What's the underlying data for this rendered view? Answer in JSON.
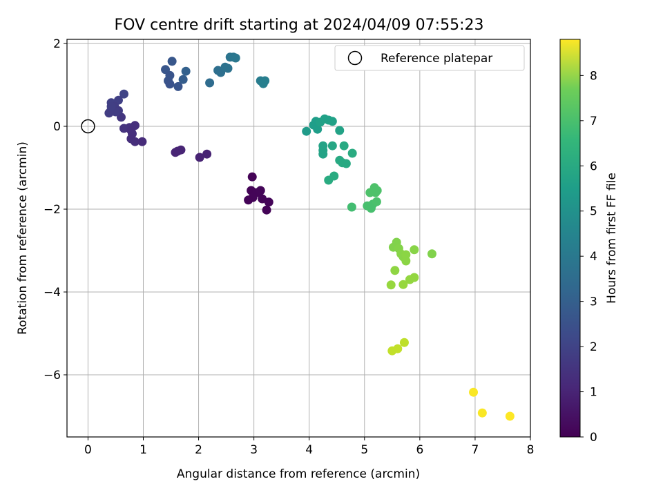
{
  "chart_data": {
    "type": "scatter",
    "title": "FOV centre drift starting at 2024/04/09 07:55:23",
    "xlabel": "Angular distance from reference (arcmin)",
    "ylabel": "Rotation from reference (arcmin)",
    "xlim": [
      -0.38,
      8.0
    ],
    "ylim": [
      -7.5,
      2.1
    ],
    "xticks": [
      0,
      1,
      2,
      3,
      4,
      5,
      6,
      7,
      8
    ],
    "yticks": [
      2,
      0,
      -2,
      -4,
      -6
    ],
    "grid": true,
    "colormap": "viridis",
    "colorbar": {
      "label": "Hours from first FF file",
      "range": [
        0,
        8.8
      ],
      "ticks": [
        0,
        1,
        2,
        3,
        4,
        5,
        6,
        7,
        8
      ]
    },
    "legend": {
      "placement": "top-right",
      "entries": [
        "Reference platepar"
      ]
    },
    "reference_point": {
      "x": 0,
      "y": 0,
      "label": "Reference platepar"
    },
    "points": [
      {
        "x": 2.97,
        "y": -1.22,
        "c": 0.05
      },
      {
        "x": 2.95,
        "y": -1.55,
        "c": 0.08
      },
      {
        "x": 3.05,
        "y": -1.6,
        "c": 0.1
      },
      {
        "x": 3.12,
        "y": -1.55,
        "c": 0.12
      },
      {
        "x": 2.98,
        "y": -1.72,
        "c": 0.1
      },
      {
        "x": 2.9,
        "y": -1.78,
        "c": 0.08
      },
      {
        "x": 3.15,
        "y": -1.75,
        "c": 0.12
      },
      {
        "x": 3.27,
        "y": -1.83,
        "c": 0.1
      },
      {
        "x": 3.23,
        "y": -2.02,
        "c": 0.08
      },
      {
        "x": 2.15,
        "y": -0.67,
        "c": 0.85
      },
      {
        "x": 2.02,
        "y": -0.75,
        "c": 0.85
      },
      {
        "x": 1.68,
        "y": -0.57,
        "c": 0.9
      },
      {
        "x": 1.62,
        "y": -0.6,
        "c": 0.9
      },
      {
        "x": 1.58,
        "y": -0.63,
        "c": 0.9
      },
      {
        "x": 0.85,
        "y": 0.02,
        "c": 1.2
      },
      {
        "x": 0.75,
        "y": -0.03,
        "c": 1.25
      },
      {
        "x": 0.65,
        "y": -0.05,
        "c": 1.3
      },
      {
        "x": 0.78,
        "y": -0.1,
        "c": 1.2
      },
      {
        "x": 0.8,
        "y": -0.18,
        "c": 1.2
      },
      {
        "x": 0.78,
        "y": -0.3,
        "c": 1.15
      },
      {
        "x": 0.85,
        "y": -0.37,
        "c": 1.15
      },
      {
        "x": 0.98,
        "y": -0.37,
        "c": 1.1
      },
      {
        "x": 0.6,
        "y": 0.22,
        "c": 1.4
      },
      {
        "x": 0.65,
        "y": 0.78,
        "c": 1.8
      },
      {
        "x": 0.55,
        "y": 0.63,
        "c": 1.7
      },
      {
        "x": 0.42,
        "y": 0.57,
        "c": 1.7
      },
      {
        "x": 0.48,
        "y": 0.48,
        "c": 1.6
      },
      {
        "x": 0.45,
        "y": 0.42,
        "c": 1.6
      },
      {
        "x": 0.55,
        "y": 0.38,
        "c": 1.55
      },
      {
        "x": 0.4,
        "y": 0.35,
        "c": 1.6
      },
      {
        "x": 0.5,
        "y": 0.35,
        "c": 1.6
      },
      {
        "x": 0.38,
        "y": 0.32,
        "c": 1.6
      },
      {
        "x": 0.42,
        "y": 0.48,
        "c": 1.65
      },
      {
        "x": 1.52,
        "y": 1.57,
        "c": 2.4
      },
      {
        "x": 1.4,
        "y": 1.37,
        "c": 2.35
      },
      {
        "x": 1.48,
        "y": 1.23,
        "c": 2.3
      },
      {
        "x": 1.45,
        "y": 1.1,
        "c": 2.3
      },
      {
        "x": 1.48,
        "y": 1.02,
        "c": 2.25
      },
      {
        "x": 1.63,
        "y": 0.96,
        "c": 2.3
      },
      {
        "x": 1.72,
        "y": 1.13,
        "c": 2.6
      },
      {
        "x": 1.77,
        "y": 1.33,
        "c": 2.7
      },
      {
        "x": 2.2,
        "y": 1.05,
        "c": 3.1
      },
      {
        "x": 2.35,
        "y": 1.35,
        "c": 3.2
      },
      {
        "x": 2.4,
        "y": 1.3,
        "c": 3.2
      },
      {
        "x": 2.48,
        "y": 1.43,
        "c": 3.3
      },
      {
        "x": 2.53,
        "y": 1.4,
        "c": 3.3
      },
      {
        "x": 2.57,
        "y": 1.67,
        "c": 3.4
      },
      {
        "x": 2.63,
        "y": 1.67,
        "c": 3.45
      },
      {
        "x": 2.67,
        "y": 1.65,
        "c": 3.5
      },
      {
        "x": 3.12,
        "y": 1.1,
        "c": 3.7
      },
      {
        "x": 3.2,
        "y": 1.1,
        "c": 3.75
      },
      {
        "x": 3.17,
        "y": 1.03,
        "c": 3.8
      },
      {
        "x": 3.95,
        "y": -0.12,
        "c": 4.8
      },
      {
        "x": 4.08,
        "y": 0.03,
        "c": 4.9
      },
      {
        "x": 4.12,
        "y": 0.12,
        "c": 4.9
      },
      {
        "x": 4.15,
        "y": -0.07,
        "c": 4.9
      },
      {
        "x": 4.2,
        "y": 0.1,
        "c": 5.0
      },
      {
        "x": 4.28,
        "y": 0.18,
        "c": 5.0
      },
      {
        "x": 4.35,
        "y": 0.15,
        "c": 5.0
      },
      {
        "x": 4.42,
        "y": 0.12,
        "c": 5.0
      },
      {
        "x": 4.55,
        "y": -0.1,
        "c": 5.05
      },
      {
        "x": 4.25,
        "y": -0.47,
        "c": 5.1
      },
      {
        "x": 4.25,
        "y": -0.58,
        "c": 5.1
      },
      {
        "x": 4.25,
        "y": -0.67,
        "c": 5.1
      },
      {
        "x": 4.42,
        "y": -0.47,
        "c": 5.2
      },
      {
        "x": 4.63,
        "y": -0.47,
        "c": 5.3
      },
      {
        "x": 4.55,
        "y": -0.82,
        "c": 5.3
      },
      {
        "x": 4.6,
        "y": -0.88,
        "c": 5.3
      },
      {
        "x": 4.67,
        "y": -0.9,
        "c": 5.3
      },
      {
        "x": 4.78,
        "y": -0.65,
        "c": 5.4
      },
      {
        "x": 4.45,
        "y": -1.2,
        "c": 5.4
      },
      {
        "x": 4.35,
        "y": -1.3,
        "c": 5.4
      },
      {
        "x": 4.77,
        "y": -1.95,
        "c": 6.1
      },
      {
        "x": 5.05,
        "y": -1.92,
        "c": 6.2
      },
      {
        "x": 5.12,
        "y": -1.98,
        "c": 6.2
      },
      {
        "x": 5.15,
        "y": -1.88,
        "c": 6.2
      },
      {
        "x": 5.22,
        "y": -1.82,
        "c": 6.25
      },
      {
        "x": 5.1,
        "y": -1.6,
        "c": 6.3
      },
      {
        "x": 5.18,
        "y": -1.48,
        "c": 6.3
      },
      {
        "x": 5.23,
        "y": -1.55,
        "c": 6.3
      },
      {
        "x": 5.2,
        "y": -1.6,
        "c": 6.3
      },
      {
        "x": 5.58,
        "y": -2.8,
        "c": 7.1
      },
      {
        "x": 5.52,
        "y": -2.92,
        "c": 7.1
      },
      {
        "x": 5.62,
        "y": -2.95,
        "c": 7.15
      },
      {
        "x": 5.66,
        "y": -3.08,
        "c": 7.2
      },
      {
        "x": 5.7,
        "y": -3.15,
        "c": 7.2
      },
      {
        "x": 5.75,
        "y": -3.25,
        "c": 7.25
      },
      {
        "x": 5.75,
        "y": -3.1,
        "c": 7.25
      },
      {
        "x": 5.9,
        "y": -2.98,
        "c": 7.2
      },
      {
        "x": 6.22,
        "y": -3.08,
        "c": 7.1
      },
      {
        "x": 5.55,
        "y": -3.48,
        "c": 7.3
      },
      {
        "x": 5.82,
        "y": -3.7,
        "c": 7.35
      },
      {
        "x": 5.9,
        "y": -3.65,
        "c": 7.35
      },
      {
        "x": 5.7,
        "y": -3.82,
        "c": 7.4
      },
      {
        "x": 5.48,
        "y": -3.83,
        "c": 7.4
      },
      {
        "x": 5.72,
        "y": -5.22,
        "c": 7.95
      },
      {
        "x": 5.6,
        "y": -5.37,
        "c": 8.0
      },
      {
        "x": 5.5,
        "y": -5.42,
        "c": 8.0
      },
      {
        "x": 6.97,
        "y": -6.42,
        "c": 8.75
      },
      {
        "x": 7.13,
        "y": -6.92,
        "c": 8.75
      },
      {
        "x": 7.63,
        "y": -7.0,
        "c": 8.8
      }
    ]
  }
}
